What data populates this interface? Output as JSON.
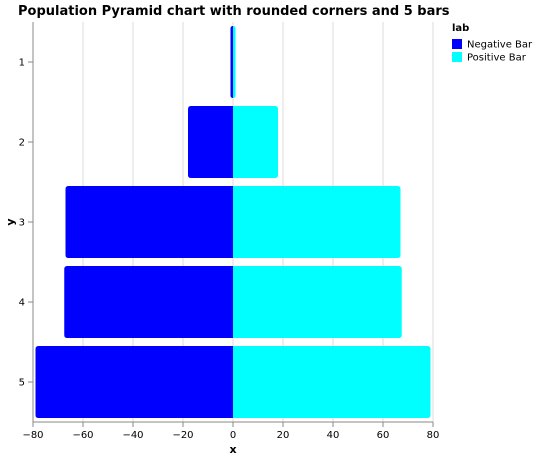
{
  "chart_data": {
    "type": "bar",
    "orientation": "horizontal-diverging",
    "title": "Population Pyramid chart with rounded corners and 5 bars",
    "xlabel": "x",
    "ylabel": "y",
    "xlim": [
      -80,
      80
    ],
    "x_ticks": [
      -80,
      -60,
      -40,
      -20,
      0,
      20,
      40,
      60,
      80
    ],
    "x_tick_labels": [
      "−80",
      "−60",
      "−40",
      "−20",
      "0",
      "20",
      "40",
      "60",
      "80"
    ],
    "categories": [
      "1",
      "2",
      "3",
      "4",
      "5"
    ],
    "grid": true,
    "legend": {
      "title": "lab",
      "placement": "top-right"
    },
    "series": [
      {
        "name": "Negative Bar",
        "color": "#0000ff",
        "values": [
          -1,
          -18,
          -67,
          -67.5,
          -79
        ]
      },
      {
        "name": "Positive Bar",
        "color": "#00ffff",
        "values": [
          1,
          18,
          67,
          67.5,
          79
        ]
      }
    ]
  }
}
